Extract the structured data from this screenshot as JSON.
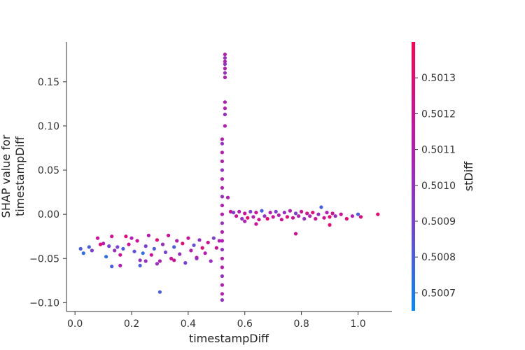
{
  "chart_data": {
    "type": "scatter",
    "xlabel": "timestampDiff",
    "ylabel": "SHAP value for\ntimestampDiff",
    "xlim": [
      -0.03,
      1.12
    ],
    "ylim": [
      -0.11,
      0.195
    ],
    "x_ticks": [
      {
        "value": 0.0,
        "label": "0.0"
      },
      {
        "value": 0.2,
        "label": "0.2"
      },
      {
        "value": 0.4,
        "label": "0.4"
      },
      {
        "value": 0.6,
        "label": "0.6"
      },
      {
        "value": 0.8,
        "label": "0.8"
      },
      {
        "value": 1.0,
        "label": "1.0"
      }
    ],
    "y_ticks": [
      {
        "value": -0.1,
        "label": "−0.10"
      },
      {
        "value": -0.05,
        "label": "−0.05"
      },
      {
        "value": 0.0,
        "label": "0.00"
      },
      {
        "value": 0.05,
        "label": "0.05"
      },
      {
        "value": 0.1,
        "label": "0.10"
      },
      {
        "value": 0.15,
        "label": "0.15"
      }
    ],
    "colorbar": {
      "label": "stDiff",
      "range": [
        0.50065,
        0.5014
      ],
      "ticks": [
        {
          "value": 0.5007,
          "label": "0.5007"
        },
        {
          "value": 0.5008,
          "label": "0.5008"
        },
        {
          "value": 0.5009,
          "label": "0.5009"
        },
        {
          "value": 0.501,
          "label": "0.5010"
        },
        {
          "value": 0.5011,
          "label": "0.5011"
        },
        {
          "value": 0.5012,
          "label": "0.5012"
        },
        {
          "value": 0.5013,
          "label": "0.5013"
        }
      ],
      "colors": [
        "#008afb",
        "#7b3fd4",
        "#c413a8",
        "#ff0050"
      ]
    },
    "points": [
      [
        0.02,
        -0.039,
        0.5008
      ],
      [
        0.03,
        -0.044,
        0.50075
      ],
      [
        0.05,
        -0.037,
        0.5008
      ],
      [
        0.06,
        -0.041,
        0.5009
      ],
      [
        0.08,
        -0.027,
        0.5012
      ],
      [
        0.09,
        -0.034,
        0.5013
      ],
      [
        0.1,
        -0.033,
        0.5011
      ],
      [
        0.11,
        -0.048,
        0.50075
      ],
      [
        0.12,
        -0.036,
        0.5009
      ],
      [
        0.13,
        -0.025,
        0.5012
      ],
      [
        0.14,
        -0.041,
        0.501
      ],
      [
        0.15,
        -0.037,
        0.5009
      ],
      [
        0.16,
        -0.046,
        0.5012
      ],
      [
        0.17,
        -0.039,
        0.5008
      ],
      [
        0.18,
        -0.025,
        0.5013
      ],
      [
        0.19,
        -0.034,
        0.5012
      ],
      [
        0.2,
        -0.027,
        0.5011
      ],
      [
        0.21,
        -0.042,
        0.50085
      ],
      [
        0.22,
        -0.03,
        0.5012
      ],
      [
        0.23,
        -0.052,
        0.501
      ],
      [
        0.24,
        -0.044,
        0.50075
      ],
      [
        0.25,
        -0.036,
        0.5009
      ],
      [
        0.26,
        -0.024,
        0.5011
      ],
      [
        0.27,
        -0.046,
        0.5012
      ],
      [
        0.28,
        -0.039,
        0.5008
      ],
      [
        0.29,
        -0.029,
        0.5013
      ],
      [
        0.3,
        -0.053,
        0.5011
      ],
      [
        0.31,
        -0.034,
        0.501
      ],
      [
        0.32,
        -0.043,
        0.5009
      ],
      [
        0.33,
        -0.024,
        0.5012
      ],
      [
        0.34,
        -0.05,
        0.5012
      ],
      [
        0.35,
        -0.037,
        0.5008
      ],
      [
        0.36,
        -0.03,
        0.5011
      ],
      [
        0.37,
        -0.045,
        0.501
      ],
      [
        0.38,
        -0.033,
        0.5013
      ],
      [
        0.39,
        -0.055,
        0.5009
      ],
      [
        0.4,
        -0.027,
        0.5012
      ],
      [
        0.41,
        -0.041,
        0.5011
      ],
      [
        0.42,
        -0.035,
        0.50085
      ],
      [
        0.43,
        -0.049,
        0.5012
      ],
      [
        0.44,
        -0.029,
        0.501
      ],
      [
        0.45,
        -0.038,
        0.5013
      ],
      [
        0.46,
        -0.044,
        0.5011
      ],
      [
        0.47,
        -0.032,
        0.5012
      ],
      [
        0.48,
        -0.053,
        0.501
      ],
      [
        0.49,
        -0.027,
        0.5009
      ],
      [
        0.5,
        -0.038,
        0.5012
      ],
      [
        0.51,
        -0.03,
        0.5011
      ],
      [
        0.13,
        -0.059,
        0.5008
      ],
      [
        0.16,
        -0.058,
        0.5011
      ],
      [
        0.23,
        -0.058,
        0.5008
      ],
      [
        0.25,
        -0.053,
        0.501
      ],
      [
        0.29,
        -0.056,
        0.501
      ],
      [
        0.35,
        -0.052,
        0.5012
      ],
      [
        0.43,
        -0.05,
        0.501
      ],
      [
        0.3,
        -0.088,
        0.5008
      ],
      [
        0.53,
        0.181,
        0.5011
      ],
      [
        0.53,
        0.177,
        0.501
      ],
      [
        0.53,
        0.173,
        0.5011
      ],
      [
        0.53,
        0.17,
        0.501
      ],
      [
        0.53,
        0.165,
        0.5011
      ],
      [
        0.53,
        0.16,
        0.501
      ],
      [
        0.53,
        0.155,
        0.5011
      ],
      [
        0.53,
        0.127,
        0.5011
      ],
      [
        0.53,
        0.12,
        0.5011
      ],
      [
        0.53,
        0.113,
        0.501
      ],
      [
        0.53,
        0.1,
        0.5011
      ],
      [
        0.52,
        0.085,
        0.5011
      ],
      [
        0.52,
        0.08,
        0.501
      ],
      [
        0.52,
        0.07,
        0.5011
      ],
      [
        0.52,
        0.06,
        0.5011
      ],
      [
        0.52,
        0.05,
        0.501
      ],
      [
        0.52,
        0.04,
        0.5011
      ],
      [
        0.52,
        0.03,
        0.5011
      ],
      [
        0.52,
        0.02,
        0.501
      ],
      [
        0.52,
        0.01,
        0.5011
      ],
      [
        0.52,
        0.0,
        0.5011
      ],
      [
        0.52,
        -0.01,
        0.501
      ],
      [
        0.52,
        -0.02,
        0.5011
      ],
      [
        0.52,
        -0.03,
        0.5011
      ],
      [
        0.52,
        -0.04,
        0.501
      ],
      [
        0.52,
        -0.05,
        0.5011
      ],
      [
        0.52,
        -0.06,
        0.5011
      ],
      [
        0.52,
        -0.07,
        0.501
      ],
      [
        0.52,
        -0.08,
        0.5011
      ],
      [
        0.52,
        -0.09,
        0.5011
      ],
      [
        0.52,
        -0.097,
        0.501
      ],
      [
        0.54,
        0.019,
        0.5011
      ],
      [
        0.55,
        0.003,
        0.5012
      ],
      [
        0.56,
        0.002,
        0.5009
      ],
      [
        0.57,
        -0.002,
        0.5012
      ],
      [
        0.58,
        0.003,
        0.5011
      ],
      [
        0.59,
        -0.005,
        0.501
      ],
      [
        0.6,
        0.001,
        0.5012
      ],
      [
        0.61,
        -0.004,
        0.5013
      ],
      [
        0.62,
        0.003,
        0.5009
      ],
      [
        0.63,
        -0.003,
        0.5011
      ],
      [
        0.64,
        0.002,
        0.5012
      ],
      [
        0.65,
        -0.006,
        0.5012
      ],
      [
        0.66,
        0.004,
        0.5008
      ],
      [
        0.67,
        -0.002,
        0.501
      ],
      [
        0.68,
        -0.005,
        0.5013
      ],
      [
        0.69,
        0.002,
        0.5011
      ],
      [
        0.7,
        -0.003,
        0.5012
      ],
      [
        0.71,
        0.003,
        0.5009
      ],
      [
        0.72,
        -0.001,
        0.5011
      ],
      [
        0.73,
        -0.006,
        0.5012
      ],
      [
        0.74,
        0.002,
        0.501
      ],
      [
        0.75,
        -0.003,
        0.5013
      ],
      [
        0.76,
        0.004,
        0.5011
      ],
      [
        0.77,
        -0.004,
        0.5012
      ],
      [
        0.78,
        0.001,
        0.5009
      ],
      [
        0.79,
        -0.002,
        0.5011
      ],
      [
        0.8,
        0.003,
        0.5012
      ],
      [
        0.81,
        -0.005,
        0.501
      ],
      [
        0.82,
        0.001,
        0.5012
      ],
      [
        0.83,
        -0.002,
        0.5011
      ],
      [
        0.84,
        0.002,
        0.5013
      ],
      [
        0.85,
        -0.005,
        0.5012
      ],
      [
        0.86,
        0.0,
        0.501
      ],
      [
        0.87,
        0.008,
        0.5008
      ],
      [
        0.88,
        -0.004,
        0.5012
      ],
      [
        0.89,
        0.002,
        0.5011
      ],
      [
        0.9,
        -0.003,
        0.5013
      ],
      [
        0.91,
        0.001,
        0.5012
      ],
      [
        0.92,
        -0.002,
        0.501
      ],
      [
        0.94,
        0.0,
        0.5012
      ],
      [
        0.96,
        -0.005,
        0.5013
      ],
      [
        0.98,
        -0.002,
        0.5011
      ],
      [
        1.0,
        0.0,
        0.5008
      ],
      [
        1.01,
        -0.003,
        0.5013
      ],
      [
        1.07,
        0.0,
        0.5013
      ],
      [
        0.78,
        -0.022,
        0.5012
      ],
      [
        0.9,
        -0.012,
        0.5013
      ],
      [
        0.64,
        -0.011,
        0.5012
      ],
      [
        0.6,
        -0.008,
        0.5011
      ]
    ]
  }
}
